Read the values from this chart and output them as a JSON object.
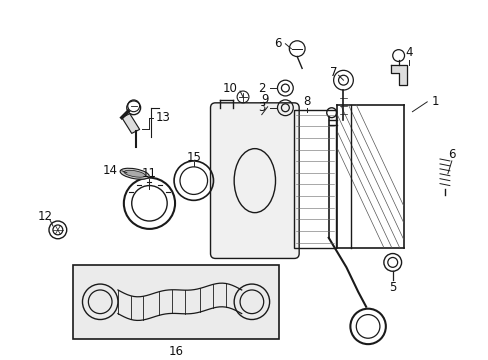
{
  "bg_color": "#ffffff",
  "fig_width": 4.89,
  "fig_height": 3.6,
  "dpi": 100,
  "line_color": "#1a1a1a",
  "label_fontsize": 8.5
}
